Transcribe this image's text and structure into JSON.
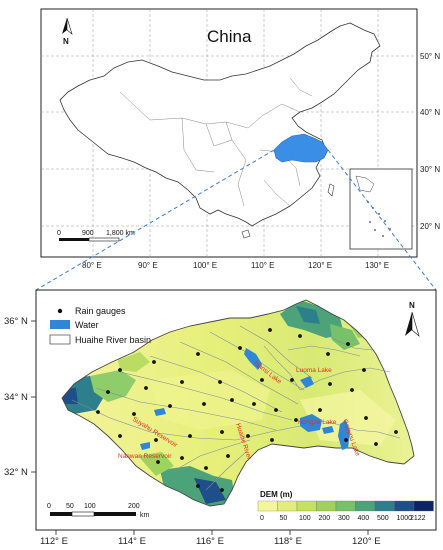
{
  "top_map": {
    "title": "China",
    "north_label": "N",
    "lat_labels": [
      "50° N",
      "40° N",
      "30° N",
      "20° N"
    ],
    "lon_labels": [
      "80° E",
      "90° E",
      "100° E",
      "110° E",
      "120° E",
      "130° E"
    ],
    "scale_labels": [
      "0",
      "900",
      "1,800 km"
    ]
  },
  "bottom_map": {
    "north_label": "N",
    "lat_labels": [
      "36° N",
      "34° N",
      "32° N"
    ],
    "lon_labels": [
      "112° E",
      "114° E",
      "116° E",
      "118° E",
      "120° E"
    ],
    "scale_labels": [
      "0",
      "50",
      "100",
      "200",
      "km"
    ],
    "legend": {
      "rain": "Rain gauges",
      "water": "Water",
      "basin": "Huaihe River basin"
    },
    "dem": {
      "title": "DEM (m)",
      "ticks": [
        "0",
        "50",
        "100",
        "200",
        "300",
        "400",
        "500",
        "1000",
        "2122"
      ],
      "colors": [
        "#f5f59a",
        "#e2ee78",
        "#c4e25a",
        "#a0d25a",
        "#78c06a",
        "#4ca37a",
        "#2e7f8c",
        "#1e4f8a",
        "#0c2466"
      ]
    },
    "lakes": [
      "Nansi Lake",
      "Luoma Lake",
      "Hongze Lake",
      "Gaoyou Lake"
    ],
    "reservoirs": [
      "Suyahu Reservoir",
      "Nanwan Reservoir"
    ],
    "rivers": [
      "Huaihe River"
    ]
  },
  "colors": {
    "highlight": "#3a8ee6",
    "water": "#2f86d9",
    "dash": "#3a7bd5"
  }
}
